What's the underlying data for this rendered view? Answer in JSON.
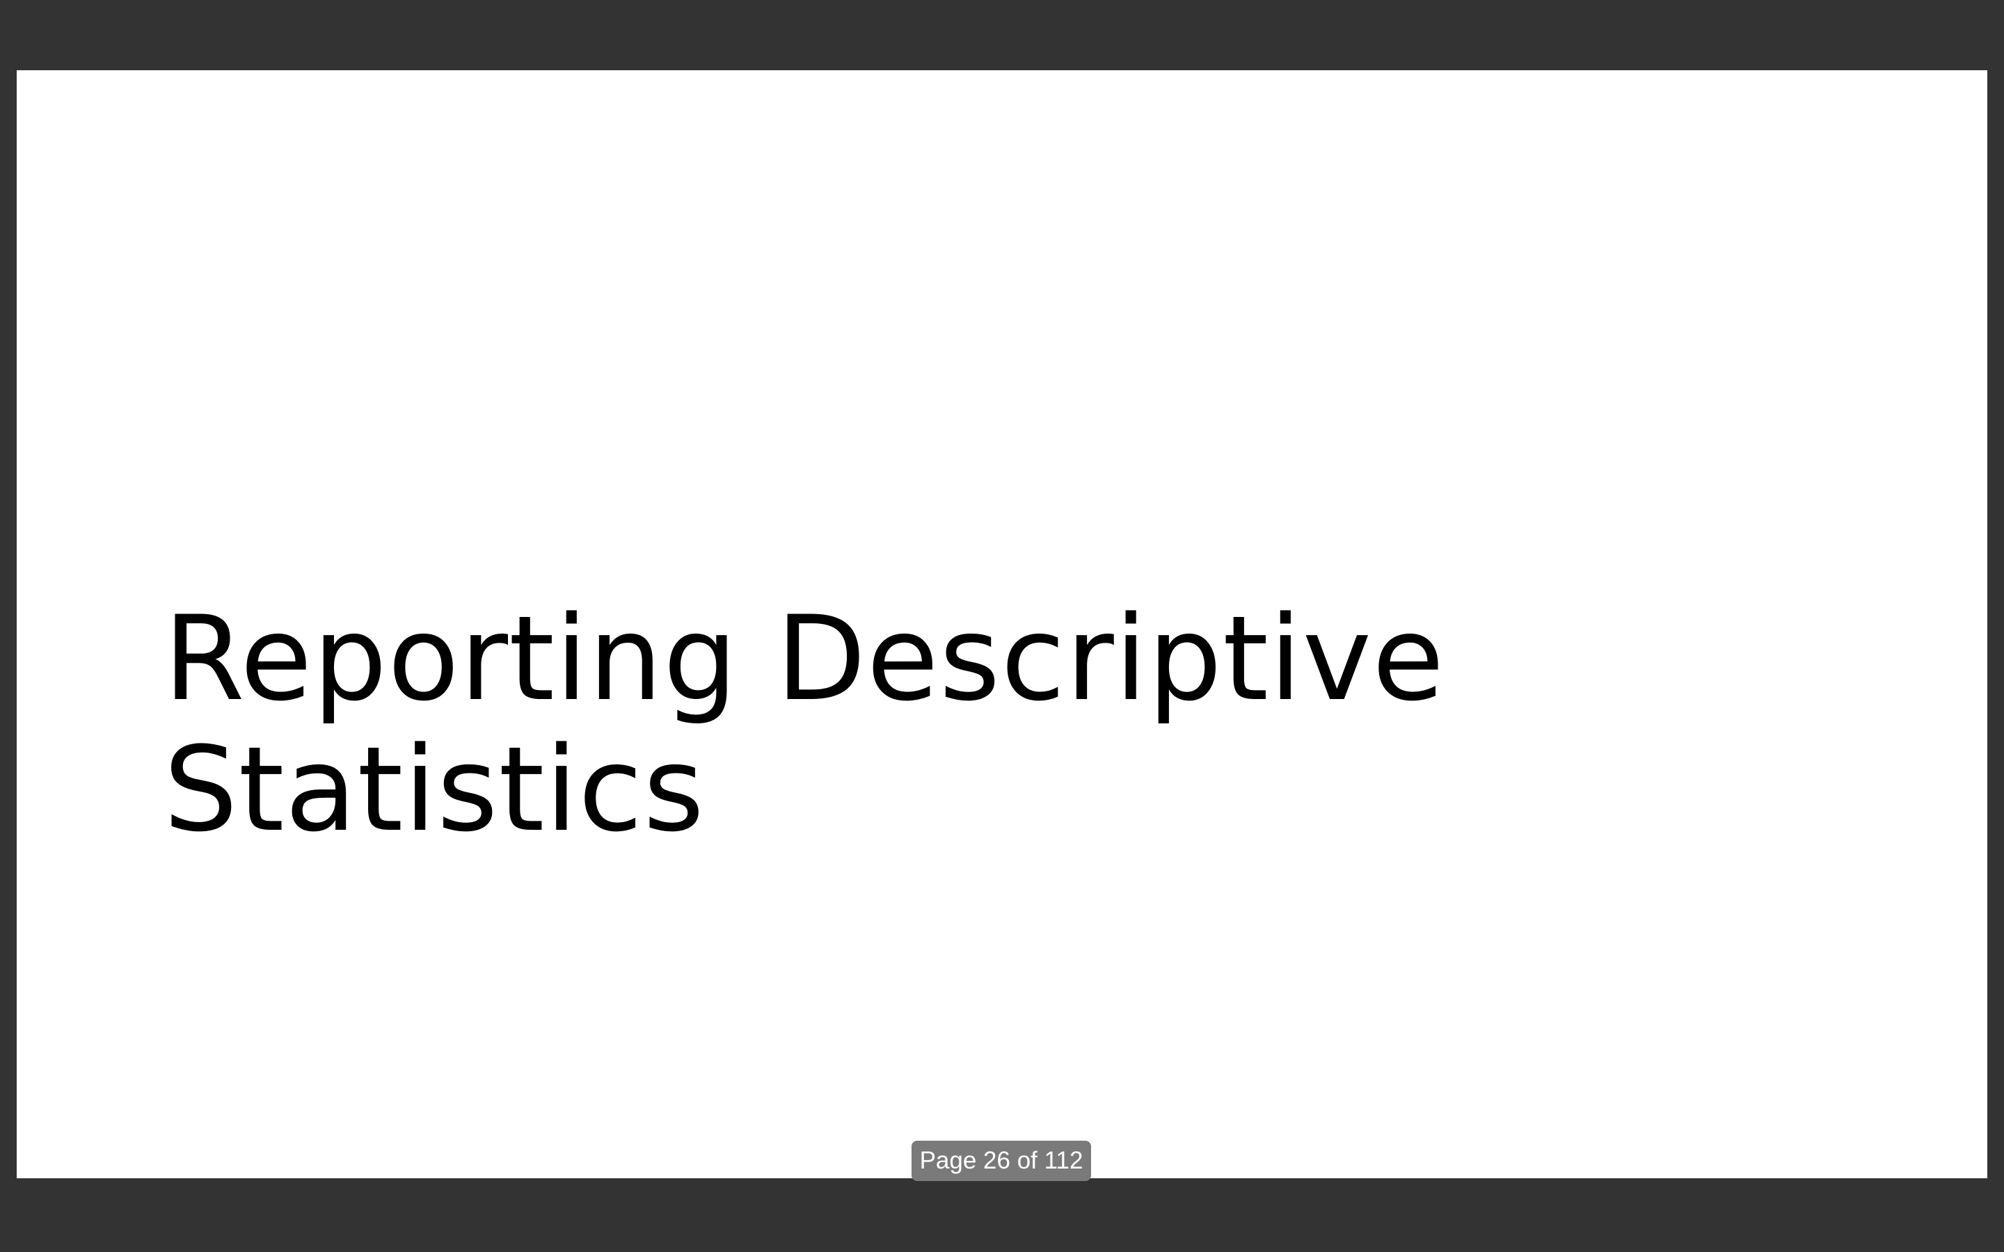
{
  "slide": {
    "title": "Reporting Descriptive Statistics"
  },
  "viewer": {
    "page_indicator": "Page 26 of 112"
  },
  "colors": {
    "background": "#333333",
    "page": "#ffffff",
    "text": "#000000",
    "indicator_bg": "#7a7a7a",
    "indicator_text": "#ffffff"
  }
}
